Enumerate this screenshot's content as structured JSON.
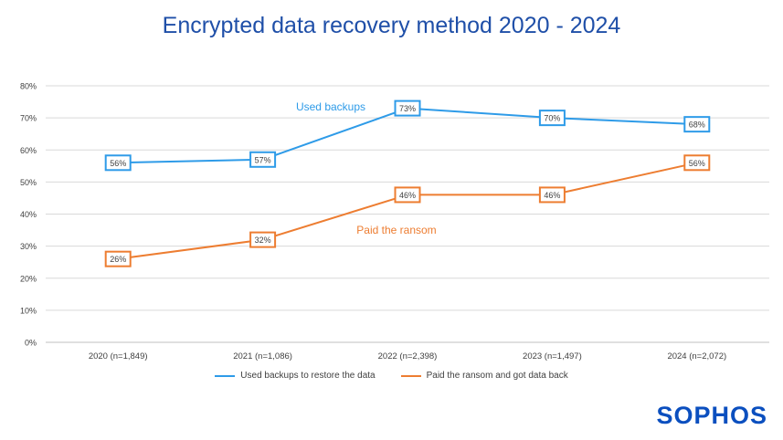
{
  "chart_data": {
    "type": "line",
    "title": "Encrypted data recovery method 2020 - 2024",
    "categories": [
      "2020 (n=1,849)",
      "2021 (n=1,086)",
      "2022 (n=2,398)",
      "2023 (n=1,497)",
      "2024 (n=2,072)"
    ],
    "ylim": [
      0,
      80
    ],
    "yticks": [
      "0%",
      "10%",
      "20%",
      "30%",
      "40%",
      "50%",
      "60%",
      "70%",
      "80%"
    ],
    "grid": true,
    "legend_position": "bottom",
    "series": [
      {
        "name": "Used backups to restore the data",
        "color": "#2e9be8",
        "values": [
          56,
          57,
          73,
          70,
          68
        ],
        "labels": [
          "56%",
          "57%",
          "73%",
          "70%",
          "68%"
        ],
        "annotation": "Used backups"
      },
      {
        "name": "Paid the ransom and got data back",
        "color": "#ed7d31",
        "values": [
          26,
          32,
          46,
          46,
          56
        ],
        "labels": [
          "26%",
          "32%",
          "46%",
          "46%",
          "56%"
        ],
        "annotation": "Paid the ransom"
      }
    ]
  },
  "logo": "SOPHOS"
}
